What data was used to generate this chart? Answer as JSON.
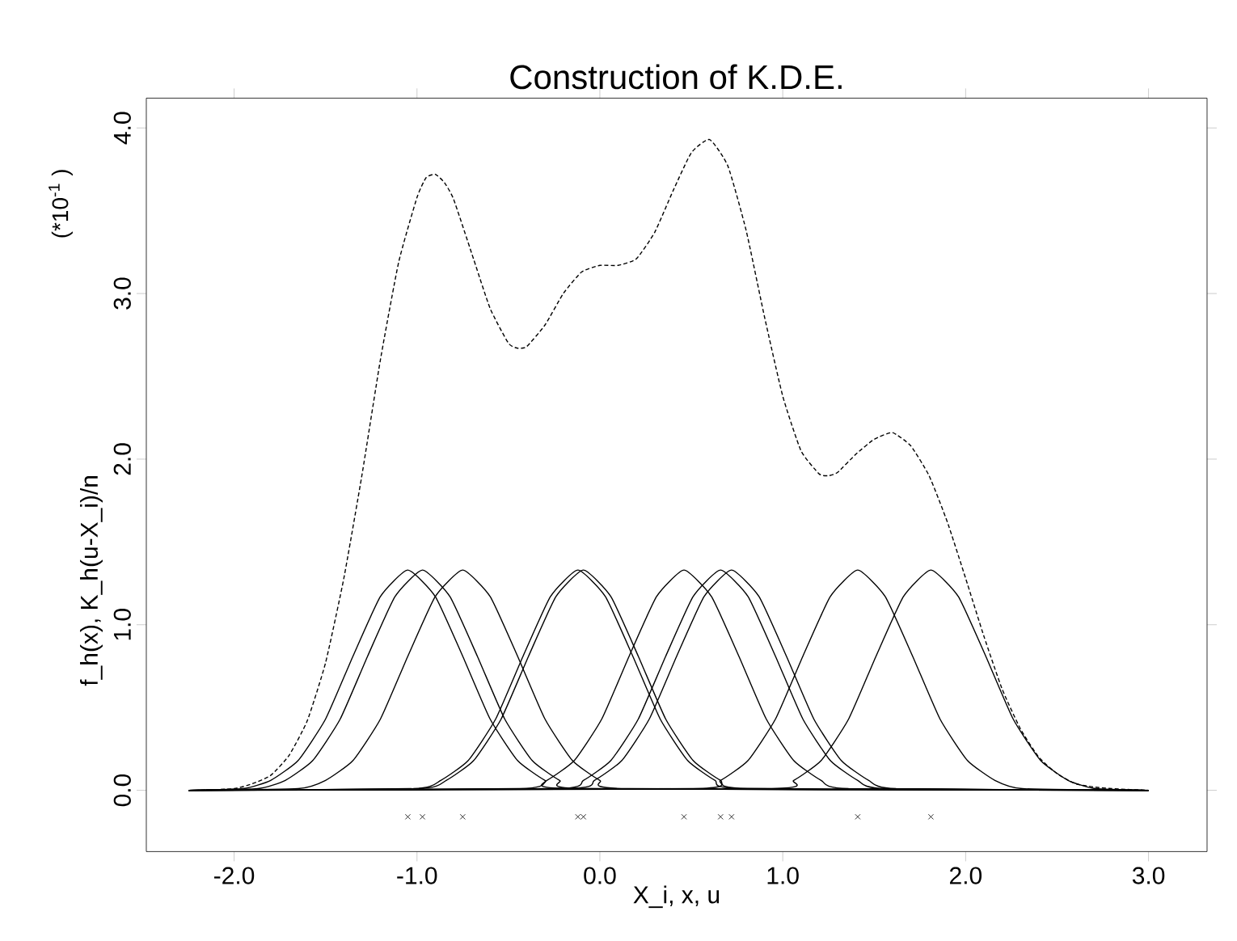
{
  "chart_data": {
    "type": "line",
    "title": "Construction of K.D.E.",
    "xlabel": "X_i, x, u",
    "ylabel": "f_h(x), K_h(u-X_i)/n",
    "annotations": [
      "(*10$^{-1}$ )"
    ],
    "xlim": [
      -2.48,
      3.32
    ],
    "ylim": [
      -0.37,
      4.18
    ],
    "xticks": [
      {
        "value": -2,
        "label": "-2.0"
      },
      {
        "value": -1,
        "label": "-1.0"
      },
      {
        "value": 0,
        "label": "0.0"
      },
      {
        "value": 1,
        "label": "1.0"
      },
      {
        "value": 2,
        "label": "2.0"
      },
      {
        "value": 3,
        "label": "3.0"
      }
    ],
    "yticks": [
      {
        "value": 0,
        "label": "0.0"
      },
      {
        "value": 1,
        "label": "1.0"
      },
      {
        "value": 2,
        "label": "2.0"
      },
      {
        "value": 3,
        "label": "3.0"
      },
      {
        "value": 4,
        "label": "4.0"
      }
    ],
    "grid": false,
    "legend": false,
    "line_style": "solid",
    "marker": "none",
    "series": [
      {
        "type": "line",
        "line_style": "dashed",
        "color": "#000000",
        "x": [
          -2.25,
          -2.2,
          -2.0,
          -1.9,
          -1.8,
          -1.7,
          -1.6,
          -1.5,
          -1.4,
          -1.3,
          -1.2,
          -1.1,
          -1.0,
          -0.95,
          -0.9,
          -0.85,
          -0.8,
          -0.7,
          -0.6,
          -0.5,
          -0.45,
          -0.4,
          -0.3,
          -0.2,
          -0.1,
          0.0,
          0.1,
          0.2,
          0.3,
          0.4,
          0.5,
          0.6,
          0.7,
          0.8,
          0.9,
          1.0,
          1.1,
          1.2,
          1.25,
          1.3,
          1.4,
          1.5,
          1.6,
          1.7,
          1.8,
          1.9,
          2.0,
          2.1,
          2.2,
          2.3,
          2.4,
          2.5,
          2.6,
          2.7,
          2.8,
          3.0
        ],
        "values": [
          0,
          0.0,
          0.01,
          0.04,
          0.09,
          0.21,
          0.42,
          0.77,
          1.28,
          1.91,
          2.6,
          3.19,
          3.58,
          3.7,
          3.72,
          3.67,
          3.57,
          3.24,
          2.91,
          2.7,
          2.67,
          2.68,
          2.81,
          3.0,
          3.13,
          3.17,
          3.17,
          3.21,
          3.37,
          3.62,
          3.85,
          3.93,
          3.77,
          3.38,
          2.86,
          2.38,
          2.05,
          1.91,
          1.9,
          1.92,
          2.03,
          2.12,
          2.16,
          2.08,
          1.9,
          1.62,
          1.28,
          0.93,
          0.61,
          0.37,
          0.2,
          0.1,
          0.04,
          0.02,
          0.01,
          0
        ]
      },
      {
        "type": "line",
        "color": "#000000",
        "x": [
          -2.25,
          -1.95,
          -1.8,
          -1.65,
          -1.5,
          -1.35,
          -1.2,
          -1.05,
          -0.9,
          -0.75,
          -0.6,
          -0.45,
          -0.3,
          -0.15,
          3.0
        ],
        "values": [
          0,
          0.01,
          0.06,
          0.18,
          0.43,
          0.81,
          1.17,
          1.33,
          1.17,
          0.81,
          0.43,
          0.18,
          0.06,
          0.01,
          0
        ]
      },
      {
        "type": "line",
        "color": "#000000",
        "x": [
          -2.25,
          -1.87,
          -1.72,
          -1.57,
          -1.42,
          -1.27,
          -1.12,
          -0.97,
          -0.82,
          -0.67,
          -0.52,
          -0.37,
          -0.22,
          -0.07,
          3.0
        ],
        "values": [
          0,
          0.01,
          0.06,
          0.18,
          0.43,
          0.81,
          1.17,
          1.33,
          1.17,
          0.81,
          0.43,
          0.18,
          0.06,
          0.01,
          0
        ]
      },
      {
        "type": "line",
        "color": "#000000",
        "x": [
          -2.25,
          -1.65,
          -1.5,
          -1.35,
          -1.2,
          -1.05,
          -0.9,
          -0.75,
          -0.6,
          -0.45,
          -0.3,
          -0.15,
          0.0,
          0.15,
          3.0
        ],
        "values": [
          0,
          0.01,
          0.06,
          0.18,
          0.43,
          0.81,
          1.17,
          1.33,
          1.17,
          0.81,
          0.43,
          0.18,
          0.06,
          0.01,
          0
        ]
      },
      {
        "type": "line",
        "color": "#000000",
        "x": [
          -2.25,
          -1.02,
          -0.87,
          -0.72,
          -0.57,
          -0.42,
          -0.27,
          -0.12,
          0.03,
          0.18,
          0.33,
          0.48,
          0.63,
          0.78,
          3.0
        ],
        "values": [
          0,
          0.01,
          0.06,
          0.18,
          0.43,
          0.81,
          1.17,
          1.33,
          1.17,
          0.81,
          0.43,
          0.18,
          0.06,
          0.01,
          0
        ]
      },
      {
        "type": "line",
        "color": "#000000",
        "x": [
          -2.25,
          -0.99,
          -0.84,
          -0.69,
          -0.54,
          -0.39,
          -0.24,
          -0.09,
          0.06,
          0.21,
          0.36,
          0.51,
          0.66,
          0.81,
          3.0
        ],
        "values": [
          0,
          0.01,
          0.06,
          0.18,
          0.43,
          0.81,
          1.17,
          1.33,
          1.17,
          0.81,
          0.43,
          0.18,
          0.06,
          0.01,
          0
        ]
      },
      {
        "type": "line",
        "color": "#000000",
        "x": [
          -2.25,
          -0.44,
          -0.29,
          -0.14,
          0.01,
          0.16,
          0.31,
          0.46,
          0.61,
          0.76,
          0.91,
          1.06,
          1.21,
          1.36,
          3.0
        ],
        "values": [
          0,
          0.01,
          0.06,
          0.18,
          0.43,
          0.81,
          1.17,
          1.33,
          1.17,
          0.81,
          0.43,
          0.18,
          0.06,
          0.01,
          0
        ]
      },
      {
        "type": "line",
        "color": "#000000",
        "x": [
          -2.25,
          -0.24,
          -0.09,
          0.06,
          0.21,
          0.36,
          0.51,
          0.66,
          0.81,
          0.96,
          1.11,
          1.26,
          1.41,
          1.56,
          3.0
        ],
        "values": [
          0,
          0.01,
          0.06,
          0.18,
          0.43,
          0.81,
          1.17,
          1.33,
          1.17,
          0.81,
          0.43,
          0.18,
          0.06,
          0.01,
          0
        ]
      },
      {
        "type": "line",
        "color": "#000000",
        "x": [
          -2.25,
          -0.18,
          -0.03,
          0.12,
          0.27,
          0.42,
          0.57,
          0.72,
          0.87,
          1.02,
          1.17,
          1.32,
          1.47,
          1.62,
          3.0
        ],
        "values": [
          0,
          0.01,
          0.06,
          0.18,
          0.43,
          0.81,
          1.17,
          1.33,
          1.17,
          0.81,
          0.43,
          0.18,
          0.06,
          0.01,
          0
        ]
      },
      {
        "type": "line",
        "color": "#000000",
        "x": [
          -2.25,
          0.51,
          0.66,
          0.81,
          0.96,
          1.11,
          1.26,
          1.41,
          1.56,
          1.71,
          1.86,
          2.01,
          2.16,
          2.31,
          3.0
        ],
        "values": [
          0,
          0.01,
          0.06,
          0.18,
          0.43,
          0.81,
          1.17,
          1.33,
          1.17,
          0.81,
          0.43,
          0.18,
          0.06,
          0.01,
          0
        ]
      },
      {
        "type": "line",
        "color": "#000000",
        "x": [
          -2.25,
          0.91,
          1.06,
          1.21,
          1.36,
          1.51,
          1.66,
          1.81,
          1.96,
          2.11,
          2.26,
          2.41,
          2.56,
          2.71,
          3.0
        ],
        "values": [
          0,
          0.01,
          0.06,
          0.18,
          0.43,
          0.81,
          1.17,
          1.33,
          1.17,
          0.81,
          0.43,
          0.18,
          0.06,
          0.01,
          0
        ]
      },
      {
        "type": "scatter",
        "marker": "cross",
        "color": "#000000",
        "x": [
          -1.05,
          -0.97,
          -0.75,
          -0.12,
          -0.09,
          0.46,
          0.66,
          0.72,
          1.41,
          1.81
        ],
        "values": [
          -0.16,
          -0.16,
          -0.16,
          -0.16,
          -0.16,
          -0.16,
          -0.16,
          -0.16,
          -0.16,
          -0.16
        ]
      }
    ]
  }
}
